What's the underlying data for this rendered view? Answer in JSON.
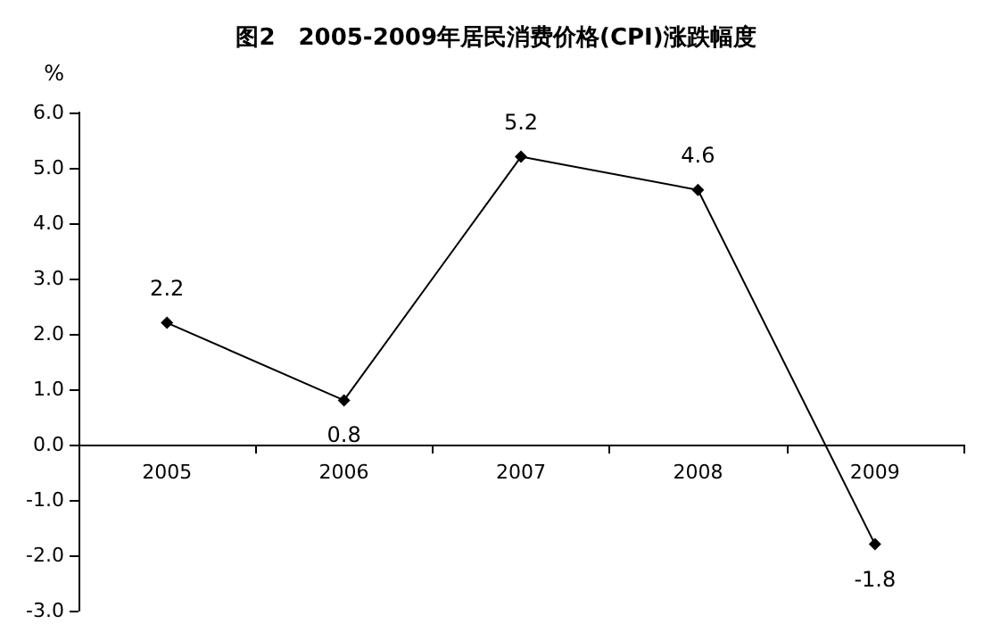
{
  "chart_data": {
    "type": "line",
    "title": "图2　2005-2009年居民消费价格(CPI)涨跌幅度",
    "ylabel": "%",
    "categories": [
      "2005",
      "2006",
      "2007",
      "2008",
      "2009"
    ],
    "series": [
      {
        "color": "#000000",
        "values": [
          2.2,
          0.8,
          5.2,
          4.6,
          -1.8
        ]
      }
    ],
    "ylim": [
      -3,
      6
    ],
    "yticks": [
      {
        "value": -3,
        "label": "-3.0"
      },
      {
        "value": -2,
        "label": "-2.0"
      },
      {
        "value": -1,
        "label": "-1.0"
      },
      {
        "value": 0,
        "label": "0.0"
      },
      {
        "value": 1,
        "label": "1.0"
      },
      {
        "value": 2,
        "label": "2.0"
      },
      {
        "value": 3,
        "label": "3.0"
      },
      {
        "value": 4,
        "label": "4.0"
      },
      {
        "value": 5,
        "label": "5.0"
      },
      {
        "value": 6,
        "label": "6.0"
      }
    ],
    "marker": "diamond",
    "line_style": "solid",
    "data_labels": true
  }
}
